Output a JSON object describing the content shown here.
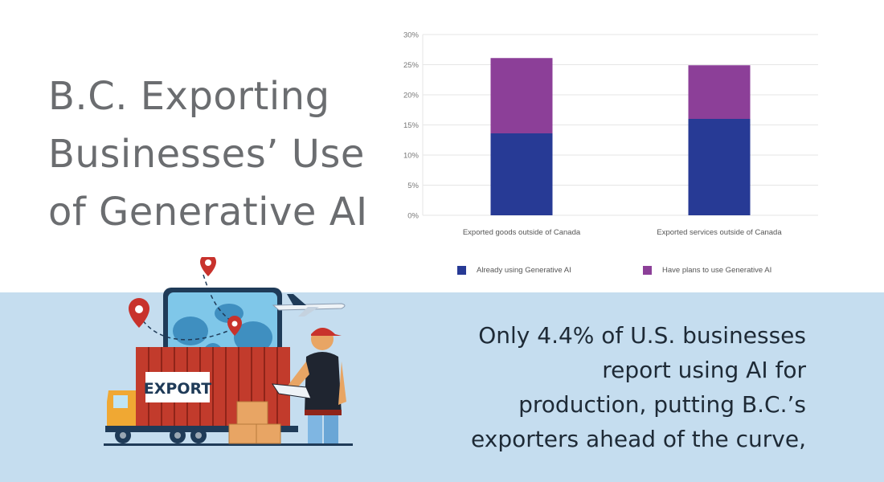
{
  "title_lines": [
    "B.C. Exporting",
    "Businesses’ Use",
    "of Generative AI"
  ],
  "callout_lines": [
    "Only 4.4% of U.S. businesses",
    "report using AI for",
    "production, putting B.C.’s",
    "exporters ahead of the curve,"
  ],
  "illustration": {
    "sign_text": "EXPORT"
  },
  "chart_data": {
    "type": "bar",
    "stacked": true,
    "categories": [
      "Exported goods outside of Canada",
      "Exported services outside of Canada"
    ],
    "series": [
      {
        "name": "Already using Generative AI",
        "color": "#273a95",
        "values": [
          13.6,
          16.0
        ]
      },
      {
        "name": "Have plans to use Generative AI",
        "color": "#8c3f98",
        "values": [
          12.5,
          8.9
        ]
      }
    ],
    "yticks": [
      "0%",
      "5%",
      "10%",
      "15%",
      "20%",
      "25%",
      "30%"
    ],
    "ylim": [
      0,
      30
    ],
    "grid": true,
    "legend_position": "bottom"
  }
}
